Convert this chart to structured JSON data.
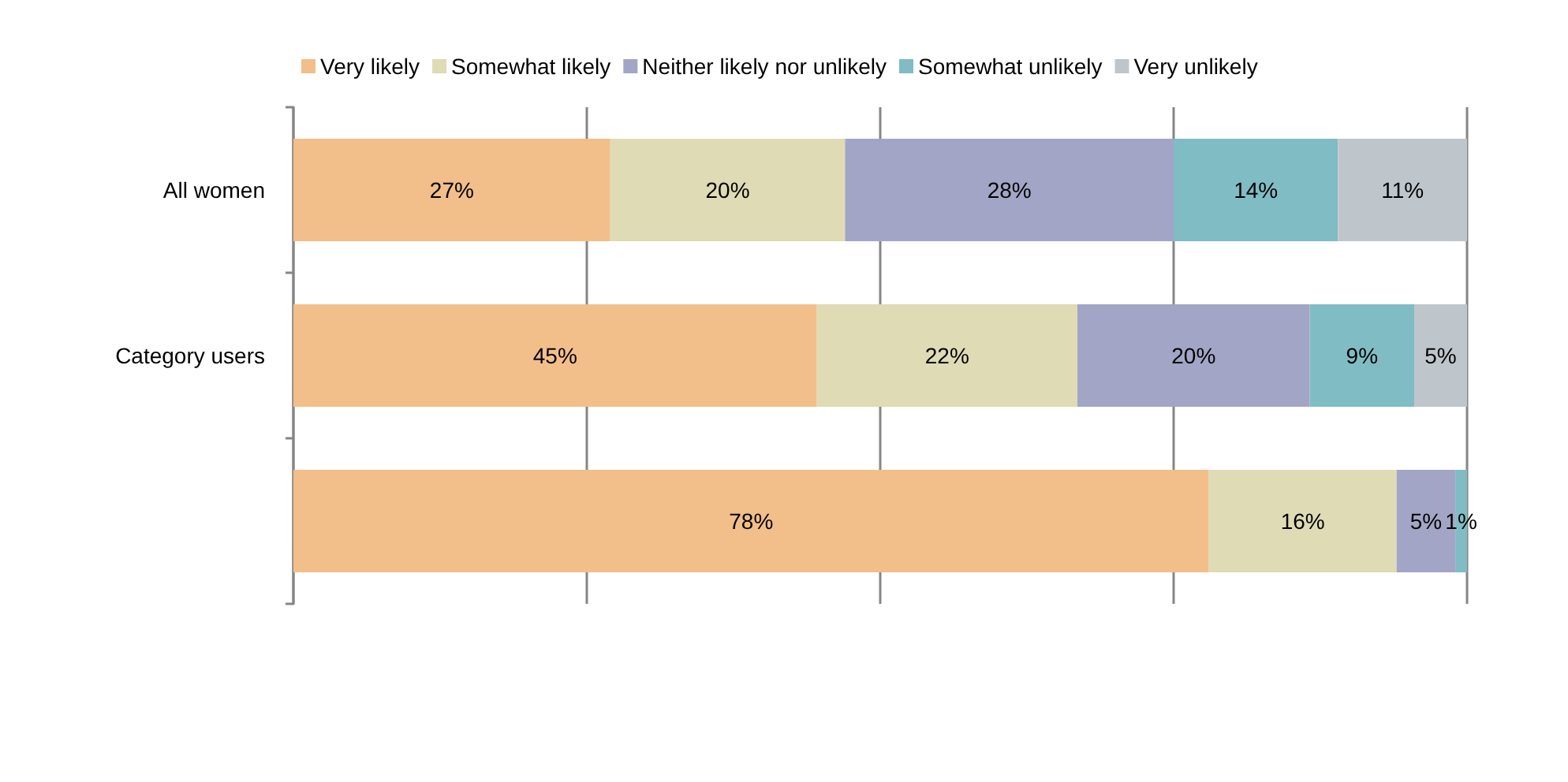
{
  "chart_data": {
    "type": "bar",
    "orientation": "horizontal",
    "stacked": true,
    "categories": [
      "All women",
      "Category users",
      null
    ],
    "series": [
      {
        "name": "Very likely",
        "color": "#f2be8a",
        "values": [
          27,
          44.6,
          78
        ],
        "value_labels": [
          "27%",
          "45%",
          "78%"
        ]
      },
      {
        "name": "Somewhat likely",
        "color": "#dedbb5",
        "values": [
          20,
          22.2,
          16
        ],
        "value_labels": [
          "20%",
          "22%",
          "16%"
        ]
      },
      {
        "name": "Neither likely nor unlikely",
        "color": "#a3a5c6",
        "values": [
          28,
          19.8,
          5
        ],
        "value_labels": [
          "28%",
          "20%",
          "5%"
        ]
      },
      {
        "name": "Somewhat unlikely",
        "color": "#80bcc4",
        "values": [
          14,
          8.9,
          1
        ],
        "value_labels": [
          "14%",
          "9%",
          "1%"
        ]
      },
      {
        "name": "Very unlikely",
        "color": "#bec6cc",
        "values": [
          11,
          4.5,
          null
        ],
        "value_labels": [
          "11%",
          "5%",
          null
        ]
      }
    ],
    "xlim": [
      0,
      100
    ],
    "xticks": [
      {
        "value": 0,
        "label": null
      },
      {
        "value": 25,
        "label": null
      },
      {
        "value": 50,
        "label": null
      },
      {
        "value": 75,
        "label": null
      },
      {
        "value": 100,
        "label": null
      }
    ],
    "grid": "x",
    "legend": "top",
    "tick_labels": "y"
  }
}
